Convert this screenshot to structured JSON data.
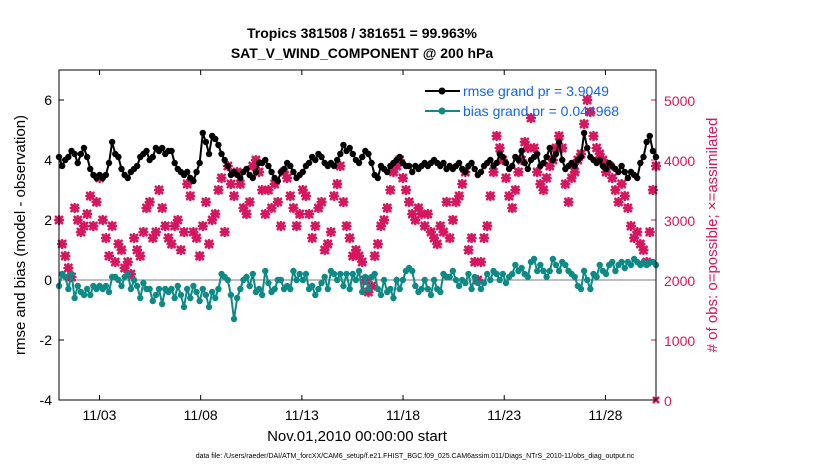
{
  "colors": {
    "rmse": "#000000",
    "bias": "#0d8a86",
    "obs": "#d6165e",
    "legend_text": "#1464f0",
    "zero_line": "#bdbdbd"
  },
  "chart_data": {
    "type": "line",
    "title": "Tropics 381508 / 381651 = 99.963%",
    "subtitle": "SAT_V_WIND_COMPONENT @ 200 hPa",
    "xlabel": "Nov.01,2010 00:00:00 start",
    "ylabel": "rmse and bias (model - observation)",
    "ylabel_right": "# of obs: o=possible; ×=assimilated",
    "xlim": [
      0,
      59
    ],
    "ylim": [
      -4,
      7
    ],
    "ylim_right": [
      0,
      5500
    ],
    "x_ticks": [
      {
        "x": 4,
        "label": "11/03"
      },
      {
        "x": 14,
        "label": "11/08"
      },
      {
        "x": 24,
        "label": "11/13"
      },
      {
        "x": 34,
        "label": "11/18"
      },
      {
        "x": 44,
        "label": "11/23"
      },
      {
        "x": 54,
        "label": "11/28"
      }
    ],
    "y_ticks": [
      -4,
      -2,
      0,
      2,
      4,
      6
    ],
    "y_ticks_right": [
      0,
      1000,
      2000,
      3000,
      4000,
      5000
    ],
    "footnote": "data file: /Users/raeder/DAI/ATM_forcXX/CAM6_setup/f.e21.FHIST_BGC.f09_025.CAM6assim.011/Diags_NTrS_2010-11/obs_diag_output.nc",
    "series": [
      {
        "name": "rmse grand pr = 3.9049",
        "axis": "left",
        "values": [
          4.1,
          3.8,
          4.0,
          4.1,
          4.3,
          4.2,
          3.9,
          4.2,
          4.4,
          4.1,
          3.7,
          3.5,
          3.4,
          3.5,
          3.4,
          3.5,
          3.9,
          4.6,
          4.2,
          4.1,
          3.7,
          3.5,
          3.4,
          3.6,
          3.7,
          3.8,
          4.1,
          4.2,
          4.3,
          4.0,
          4.1,
          4.4,
          4.3,
          4.4,
          4.2,
          4.3,
          4.3,
          3.9,
          3.7,
          3.6,
          3.5,
          3.6,
          3.4,
          3.3,
          3.6,
          3.9,
          4.9,
          4.6,
          4.2,
          4.8,
          4.7,
          4.5,
          4.2,
          4.0,
          3.8,
          3.5,
          3.6,
          3.5,
          3.4,
          3.6,
          3.7,
          3.5,
          3.4,
          3.6,
          3.9,
          3.9,
          4.0,
          3.8,
          3.6,
          3.4,
          3.3,
          3.6,
          3.7,
          3.9,
          3.8,
          3.6,
          3.4,
          3.5,
          3.6,
          3.8,
          3.9,
          4.1,
          4.0,
          4.2,
          4.1,
          3.9,
          3.8,
          3.9,
          3.8,
          4.0,
          4.2,
          4.5,
          4.3,
          4.4,
          4.2,
          4.0,
          3.9,
          4.1,
          4.3,
          4.2,
          3.9,
          3.5,
          3.4,
          3.8,
          3.7,
          3.6,
          3.8,
          3.9,
          4.0,
          4.1,
          3.9,
          3.8,
          3.8,
          3.6,
          3.8,
          3.7,
          3.8,
          3.9,
          3.8,
          3.9,
          4.0,
          3.9,
          3.8,
          3.9,
          3.7,
          3.8,
          3.7,
          3.8,
          3.9,
          3.7,
          3.6,
          3.8,
          3.9,
          3.7,
          3.5,
          3.6,
          3.8,
          3.9,
          4.0,
          3.8,
          3.9,
          4.2,
          4.1,
          3.9,
          3.7,
          3.8,
          4.1,
          4.0,
          4.3,
          3.9,
          3.7,
          4.0,
          4.1,
          4.2,
          3.8,
          3.9,
          4.1,
          4.4,
          4.0,
          4.2,
          4.6,
          4.0,
          3.7,
          3.8,
          3.9,
          3.8,
          4.0,
          4.1,
          4.9,
          4.4,
          4.1,
          4.0,
          3.9,
          4.0,
          3.8,
          3.7,
          3.9,
          3.8,
          3.7,
          3.6,
          3.8,
          3.6,
          3.4,
          3.6,
          3.5,
          3.4,
          3.9,
          4.1,
          4.6,
          4.8,
          4.3,
          4.1
        ]
      },
      {
        "name": "bias grand pr = 0.044968",
        "axis": "left",
        "values": [
          -0.2,
          0.2,
          0.1,
          -0.3,
          0.2,
          -0.6,
          -0.2,
          -0.4,
          -0.5,
          -0.3,
          -0.5,
          -0.2,
          -0.3,
          -0.2,
          -0.3,
          -0.2,
          -0.4,
          0.1,
          0.1,
          0.0,
          -0.2,
          0.1,
          0.2,
          -0.3,
          0.0,
          -0.2,
          -0.6,
          -0.1,
          -0.3,
          -0.3,
          -0.7,
          -0.5,
          -0.3,
          -0.8,
          -0.3,
          -0.4,
          -0.3,
          -0.6,
          -0.2,
          -0.5,
          -0.9,
          -0.3,
          -0.6,
          -0.2,
          -0.4,
          -0.7,
          -0.3,
          -0.5,
          -0.9,
          -0.4,
          -0.6,
          -0.3,
          0.2,
          0.1,
          0.0,
          -0.5,
          -1.3,
          -0.6,
          -0.3,
          0.0,
          0.1,
          -0.2,
          0.2,
          -0.4,
          -0.3,
          -0.5,
          0.3,
          -0.1,
          -0.4,
          -0.3,
          0.0,
          0.0,
          -0.3,
          -0.2,
          -0.3,
          0.3,
          0.0,
          0.2,
          0.0,
          0.2,
          -0.3,
          -0.2,
          -0.5,
          -0.3,
          -0.1,
          0.1,
          -0.3,
          0.3,
          0.2,
          0.0,
          0.2,
          -0.2,
          0.2,
          -0.3,
          0.2,
          0.0,
          0.3,
          -0.4,
          0.1,
          -0.3,
          0.1,
          0.2,
          -0.3,
          -0.5,
          0.0,
          -0.4,
          -0.3,
          -0.6,
          0.0,
          -0.3,
          0.0,
          0.3,
          0.4,
          0.3,
          -0.2,
          -0.4,
          -0.3,
          0.0,
          -0.3,
          -0.5,
          0.0,
          -0.3,
          -0.4,
          0.2,
          0.1,
          0.1,
          0.3,
          0.0,
          -0.2,
          0.0,
          -0.1,
          0.2,
          -0.3,
          0.1,
          -0.1,
          -0.3,
          -0.1,
          0.2,
          0.0,
          0.3,
          0.2,
          0.0,
          0.2,
          -0.1,
          0.1,
          0.2,
          0.5,
          0.3,
          0.4,
          0.2,
          0.1,
          0.6,
          0.7,
          0.3,
          0.5,
          0.3,
          0.1,
          0.3,
          0.7,
          0.5,
          0.3,
          0.6,
          0.5,
          0.3,
          0.2,
          0.1,
          -0.2,
          -0.3,
          0.3,
          0.0,
          -0.3,
          0.2,
          0.1,
          0.5,
          0.3,
          0.2,
          0.5,
          0.6,
          0.3,
          0.5,
          0.6,
          0.4,
          0.6,
          0.5,
          0.7,
          0.6,
          0.5,
          0.6,
          0.5,
          0.6,
          0.6,
          0.5
        ]
      },
      {
        "name": "# of obs assimilated",
        "axis": "right",
        "values": [
          3000,
          2600,
          2400,
          2200,
          2050,
          3200,
          3000,
          2800,
          2900,
          3100,
          3400,
          2900,
          3300,
          3700,
          3000,
          2700,
          2400,
          2900,
          2300,
          2600,
          2500,
          2200,
          2300,
          2100,
          2700,
          2500,
          2400,
          2800,
          3200,
          3300,
          2700,
          2800,
          3500,
          3200,
          2900,
          2700,
          2600,
          2900,
          3000,
          2500,
          2800,
          3600,
          3400,
          2800,
          2700,
          2400,
          2900,
          3300,
          2600,
          3000,
          3100,
          3500,
          3700,
          2800,
          3900,
          3600,
          3400,
          3800,
          3600,
          3200,
          3100,
          3300,
          3900,
          4000,
          3800,
          3500,
          3100,
          3500,
          3200,
          3600,
          3300,
          2900,
          3800,
          3700,
          3400,
          3200,
          2900,
          3100,
          3500,
          3400,
          3100,
          2700,
          2900,
          3200,
          3300,
          2500,
          2600,
          2800,
          3400,
          3600,
          3900,
          3300,
          2900,
          2700,
          2400,
          2500,
          2400,
          2300,
          2000,
          1800,
          1900,
          2400,
          2600,
          2900,
          3000,
          3200,
          3500,
          3800,
          3900,
          4000,
          3700,
          3500,
          3300,
          3100,
          3000,
          3200,
          3100,
          2900,
          3100,
          2800,
          2700,
          2600,
          2900,
          2800,
          3300,
          2700,
          3000,
          3300,
          3400,
          3600,
          3800,
          2500,
          2700,
          2300,
          2000,
          2300,
          2700,
          2900,
          3400,
          3800,
          4400,
          4200,
          4000,
          3700,
          3400,
          3200,
          3500,
          3800,
          4000,
          4300,
          4200,
          4700,
          4200,
          3800,
          3600,
          3500,
          3700,
          3900,
          4000,
          4200,
          4400,
          4200,
          3600,
          3300,
          3700,
          3800,
          4000,
          4100,
          4600,
          5000,
          4800,
          4400,
          4200,
          4100,
          4000,
          3800,
          3900,
          3700,
          3500,
          3300,
          3600,
          3400,
          3200,
          2900,
          2700,
          2800,
          2600,
          2500,
          2300,
          2800,
          3500,
          3900
        ]
      }
    ]
  }
}
